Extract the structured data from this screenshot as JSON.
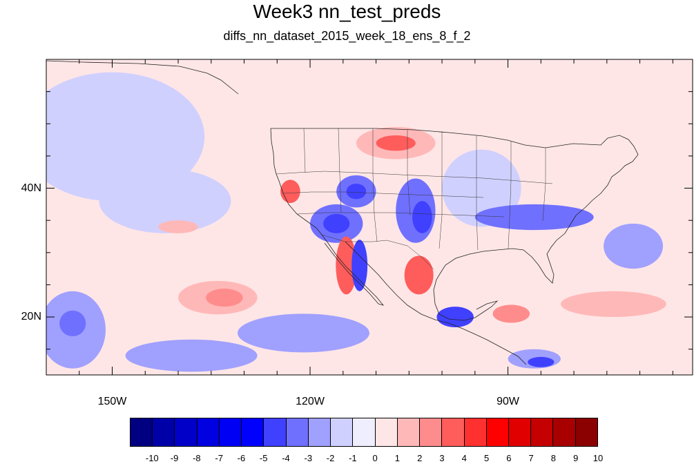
{
  "title": "Week3 nn_test_preds",
  "subtitle": "diffs_nn_dataset_2015_week_18_ens_8_f_2",
  "map": {
    "lon_range": [
      -160,
      -62
    ],
    "lat_range": [
      11,
      60
    ],
    "longitude_labels": [
      {
        "lon": -150,
        "text": "150W"
      },
      {
        "lon": -120,
        "text": "120W"
      },
      {
        "lon": -90,
        "text": "90W"
      }
    ],
    "latitude_labels": [
      {
        "lat": 40,
        "text": "40N"
      },
      {
        "lat": 20,
        "text": "20N"
      }
    ],
    "background_level": 0
  },
  "colorbar": {
    "labels": [
      "-10",
      "-9",
      "-8",
      "-7",
      "-6",
      "-5",
      "-4",
      "-3",
      "-2",
      "-1",
      "0",
      "1",
      "2",
      "3",
      "4",
      "5",
      "6",
      "7",
      "8",
      "9",
      "10"
    ],
    "colors": [
      "#000080",
      "#0000a8",
      "#0000c8",
      "#0000e0",
      "#0000f5",
      "#0000ff",
      "#4040ff",
      "#7070ff",
      "#a0a0ff",
      "#d0d0ff",
      "#eeeeff",
      "#ffe6e6",
      "#ffb8b8",
      "#ff8c8c",
      "#ff5c5c",
      "#ff3030",
      "#ff0000",
      "#e00000",
      "#c40000",
      "#a80000",
      "#8b0000"
    ]
  },
  "field_features": [
    {
      "kind": "positive",
      "level": 2,
      "lon": -107,
      "lat": 47,
      "rx": 6,
      "ry": 2.5
    },
    {
      "kind": "positive",
      "level": 4,
      "lon": -107,
      "lat": 47,
      "rx": 3,
      "ry": 1.2
    },
    {
      "kind": "positive",
      "level": 4,
      "lon": -123,
      "lat": 39.5,
      "rx": 1.5,
      "ry": 1.8
    },
    {
      "kind": "negative",
      "level": -3,
      "lon": -113,
      "lat": 39.5,
      "rx": 3,
      "ry": 2.5
    },
    {
      "kind": "negative",
      "level": -4,
      "lon": -113,
      "lat": 39.5,
      "rx": 1.5,
      "ry": 1.2
    },
    {
      "kind": "negative",
      "level": -3,
      "lon": -116,
      "lat": 34.5,
      "rx": 4,
      "ry": 3
    },
    {
      "kind": "negative",
      "level": -4,
      "lon": -116,
      "lat": 34.5,
      "rx": 2,
      "ry": 1.5
    },
    {
      "kind": "negative",
      "level": -3,
      "lon": -104,
      "lat": 36.5,
      "rx": 3,
      "ry": 5
    },
    {
      "kind": "negative",
      "level": -4,
      "lon": -103,
      "lat": 35.5,
      "rx": 1.5,
      "ry": 2.5
    },
    {
      "kind": "positive",
      "level": 4,
      "lon": -114.5,
      "lat": 28,
      "rx": 1.6,
      "ry": 4.5
    },
    {
      "kind": "negative",
      "level": -4,
      "lon": -112.5,
      "lat": 28,
      "rx": 1.2,
      "ry": 4
    },
    {
      "kind": "positive",
      "level": 4,
      "lon": -103.5,
      "lat": 26.5,
      "rx": 2.2,
      "ry": 3
    },
    {
      "kind": "negative",
      "level": -4,
      "lon": -98,
      "lat": 20,
      "rx": 2.8,
      "ry": 1.6
    },
    {
      "kind": "positive",
      "level": 3,
      "lon": -89.5,
      "lat": 20.5,
      "rx": 2.8,
      "ry": 1.4
    },
    {
      "kind": "negative",
      "level": -3,
      "lon": -86,
      "lat": 35.5,
      "rx": 9,
      "ry": 2
    },
    {
      "kind": "negative",
      "level": -2,
      "lon": -71,
      "lat": 31,
      "rx": 4.5,
      "ry": 3.5
    },
    {
      "kind": "positive",
      "level": 2,
      "lon": -134,
      "lat": 23,
      "rx": 6,
      "ry": 2.6
    },
    {
      "kind": "positive",
      "level": 3,
      "lon": -133,
      "lat": 23,
      "rx": 2.8,
      "ry": 1.4
    },
    {
      "kind": "negative",
      "level": -2,
      "lon": -121,
      "lat": 17.5,
      "rx": 10,
      "ry": 3
    },
    {
      "kind": "negative",
      "level": -2,
      "lon": -138,
      "lat": 14,
      "rx": 10,
      "ry": 2.5
    },
    {
      "kind": "negative",
      "level": -2,
      "lon": -156,
      "lat": 18,
      "rx": 5,
      "ry": 6
    },
    {
      "kind": "negative",
      "level": -3,
      "lon": -156,
      "lat": 19,
      "rx": 2,
      "ry": 2
    },
    {
      "kind": "positive",
      "level": 2,
      "lon": -74,
      "lat": 22,
      "rx": 8,
      "ry": 2
    },
    {
      "kind": "positive",
      "level": 2,
      "lon": -140,
      "lat": 34,
      "rx": 3,
      "ry": 1
    },
    {
      "kind": "negative",
      "level": -2,
      "lon": -86,
      "lat": 13.5,
      "rx": 4,
      "ry": 1.5
    },
    {
      "kind": "negative",
      "level": -4,
      "lon": -85,
      "lat": 13,
      "rx": 2,
      "ry": 0.8
    },
    {
      "kind": "negative",
      "level": -1,
      "lon": -150,
      "lat": 48,
      "rx": 14,
      "ry": 10
    },
    {
      "kind": "negative",
      "level": -1,
      "lon": -142,
      "lat": 38,
      "rx": 10,
      "ry": 5
    },
    {
      "kind": "negative",
      "level": -1,
      "lon": -94,
      "lat": 40,
      "rx": 6,
      "ry": 6
    }
  ]
}
